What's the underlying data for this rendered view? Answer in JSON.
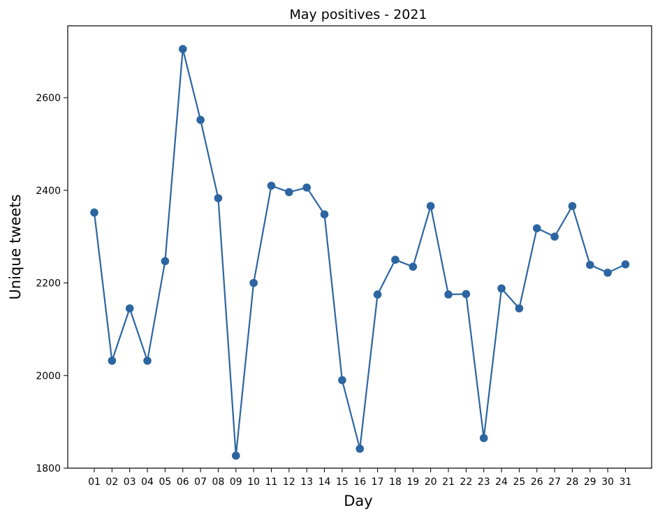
{
  "chart_data": {
    "type": "line",
    "title": "May positives - 2021",
    "xlabel": "Day",
    "ylabel": "Unique tweets",
    "ylim": [
      1800,
      2700
    ],
    "yticks": [
      1800,
      2000,
      2200,
      2400,
      2600
    ],
    "grid": false,
    "legend": "none",
    "categories": [
      "01",
      "02",
      "03",
      "04",
      "05",
      "06",
      "07",
      "08",
      "09",
      "10",
      "11",
      "12",
      "13",
      "14",
      "15",
      "16",
      "17",
      "18",
      "19",
      "20",
      "21",
      "22",
      "23",
      "24",
      "25",
      "26",
      "27",
      "28",
      "29",
      "30",
      "31"
    ],
    "series": [
      {
        "color": "#2c65a1",
        "marker": "circle",
        "values": [
          2352,
          2032,
          2145,
          2032,
          2247,
          2705,
          2552,
          2383,
          1827,
          2200,
          2410,
          2396,
          2406,
          2348,
          1990,
          1842,
          2175,
          2250,
          2235,
          2366,
          2175,
          2176,
          1865,
          2188,
          2145,
          2318,
          2300,
          2366,
          2239,
          2222,
          2240
        ]
      }
    ]
  }
}
